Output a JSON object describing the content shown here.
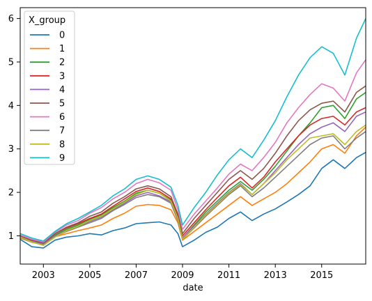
{
  "chart_data": {
    "type": "line",
    "xlabel": "date",
    "ylabel": "",
    "xlim": [
      2002.0,
      2016.9
    ],
    "ylim": [
      0.35,
      6.25
    ],
    "x_ticks": [
      2003,
      2005,
      2007,
      2009,
      2011,
      2013,
      2015
    ],
    "x_tick_labels": [
      "2003",
      "2005",
      "2007",
      "2009",
      "2011",
      "2013",
      "2015"
    ],
    "y_ticks": [
      1,
      2,
      3,
      4,
      5,
      6
    ],
    "y_tick_labels": [
      "1",
      "2",
      "3",
      "4",
      "5",
      "6"
    ],
    "grid": false,
    "legend": {
      "title": "X_group",
      "placement": "top-left"
    },
    "x": [
      2002.0,
      2002.5,
      2003.0,
      2003.5,
      2004.0,
      2004.5,
      2005.0,
      2005.5,
      2006.0,
      2006.5,
      2007.0,
      2007.5,
      2008.0,
      2008.5,
      2008.8,
      2009.0,
      2009.5,
      2010.0,
      2010.5,
      2011.0,
      2011.5,
      2012.0,
      2012.5,
      2013.0,
      2013.5,
      2014.0,
      2014.5,
      2015.0,
      2015.5,
      2016.0,
      2016.5,
      2016.9
    ],
    "series": [
      {
        "name": "0",
        "color": "#1f77b4",
        "values": [
          0.92,
          0.75,
          0.72,
          0.9,
          0.97,
          1.0,
          1.05,
          1.02,
          1.12,
          1.18,
          1.28,
          1.3,
          1.32,
          1.25,
          1.05,
          0.75,
          0.9,
          1.08,
          1.2,
          1.4,
          1.55,
          1.35,
          1.5,
          1.62,
          1.78,
          1.95,
          2.15,
          2.55,
          2.75,
          2.55,
          2.8,
          2.92
        ]
      },
      {
        "name": "1",
        "color": "#ff7f0e",
        "values": [
          0.95,
          0.85,
          0.8,
          0.98,
          1.05,
          1.12,
          1.18,
          1.25,
          1.4,
          1.52,
          1.68,
          1.72,
          1.7,
          1.6,
          1.3,
          0.9,
          1.1,
          1.3,
          1.5,
          1.7,
          1.9,
          1.7,
          1.85,
          2.0,
          2.2,
          2.45,
          2.7,
          3.0,
          3.1,
          2.9,
          3.3,
          3.5
        ]
      },
      {
        "name": "2",
        "color": "#2ca02c",
        "values": [
          0.98,
          0.88,
          0.82,
          1.02,
          1.15,
          1.25,
          1.38,
          1.48,
          1.65,
          1.8,
          1.98,
          2.05,
          1.98,
          1.82,
          1.4,
          0.95,
          1.25,
          1.55,
          1.8,
          2.05,
          2.25,
          2.05,
          2.3,
          2.6,
          2.95,
          3.3,
          3.6,
          3.95,
          4.0,
          3.7,
          4.15,
          4.3
        ]
      },
      {
        "name": "3",
        "color": "#d62728",
        "values": [
          0.98,
          0.9,
          0.83,
          1.05,
          1.18,
          1.28,
          1.4,
          1.5,
          1.68,
          1.85,
          2.02,
          2.1,
          2.02,
          1.85,
          1.45,
          1.0,
          1.3,
          1.6,
          1.88,
          2.15,
          2.35,
          2.1,
          2.35,
          2.7,
          3.0,
          3.3,
          3.55,
          3.7,
          3.75,
          3.55,
          3.85,
          3.95
        ]
      },
      {
        "name": "4",
        "color": "#9467bd",
        "values": [
          0.98,
          0.88,
          0.81,
          1.0,
          1.12,
          1.22,
          1.33,
          1.43,
          1.6,
          1.75,
          1.92,
          2.0,
          1.92,
          1.78,
          1.38,
          0.95,
          1.22,
          1.5,
          1.75,
          2.0,
          2.2,
          1.95,
          2.2,
          2.5,
          2.8,
          3.1,
          3.35,
          3.5,
          3.6,
          3.4,
          3.75,
          3.85
        ]
      },
      {
        "name": "5",
        "color": "#8c564b",
        "values": [
          1.0,
          0.9,
          0.84,
          1.05,
          1.2,
          1.3,
          1.45,
          1.55,
          1.75,
          1.9,
          2.08,
          2.15,
          2.08,
          1.9,
          1.5,
          1.05,
          1.4,
          1.7,
          2.0,
          2.3,
          2.5,
          2.3,
          2.55,
          2.9,
          3.3,
          3.65,
          3.9,
          4.05,
          4.1,
          3.85,
          4.3,
          4.45
        ]
      },
      {
        "name": "6",
        "color": "#e377c2",
        "values": [
          1.02,
          0.92,
          0.86,
          1.08,
          1.25,
          1.35,
          1.52,
          1.65,
          1.85,
          2.0,
          2.2,
          2.3,
          2.22,
          2.05,
          1.6,
          1.15,
          1.5,
          1.8,
          2.1,
          2.42,
          2.65,
          2.5,
          2.8,
          3.15,
          3.6,
          3.95,
          4.25,
          4.5,
          4.4,
          4.1,
          4.75,
          5.05
        ]
      },
      {
        "name": "7",
        "color": "#7f7f7f",
        "values": [
          0.96,
          0.86,
          0.8,
          0.98,
          1.1,
          1.2,
          1.3,
          1.4,
          1.58,
          1.72,
          1.88,
          1.95,
          1.9,
          1.75,
          1.35,
          0.92,
          1.18,
          1.45,
          1.7,
          1.95,
          2.15,
          1.9,
          2.1,
          2.35,
          2.6,
          2.85,
          3.1,
          3.25,
          3.3,
          3.0,
          3.25,
          3.4
        ]
      },
      {
        "name": "8",
        "color": "#bcbd22",
        "values": [
          0.97,
          0.86,
          0.78,
          0.97,
          1.12,
          1.22,
          1.35,
          1.45,
          1.62,
          1.78,
          1.95,
          2.05,
          1.98,
          1.8,
          1.4,
          0.92,
          1.2,
          1.48,
          1.72,
          1.98,
          2.18,
          1.95,
          2.2,
          2.45,
          2.75,
          3.0,
          3.25,
          3.3,
          3.35,
          3.1,
          3.4,
          3.55
        ]
      },
      {
        "name": "9",
        "color": "#17becf",
        "values": [
          1.05,
          0.95,
          0.88,
          1.1,
          1.28,
          1.4,
          1.55,
          1.7,
          1.92,
          2.08,
          2.3,
          2.38,
          2.3,
          2.12,
          1.7,
          1.25,
          1.65,
          2.0,
          2.4,
          2.75,
          3.0,
          2.8,
          3.2,
          3.65,
          4.2,
          4.7,
          5.1,
          5.35,
          5.2,
          4.7,
          5.55,
          6.0
        ]
      }
    ]
  }
}
